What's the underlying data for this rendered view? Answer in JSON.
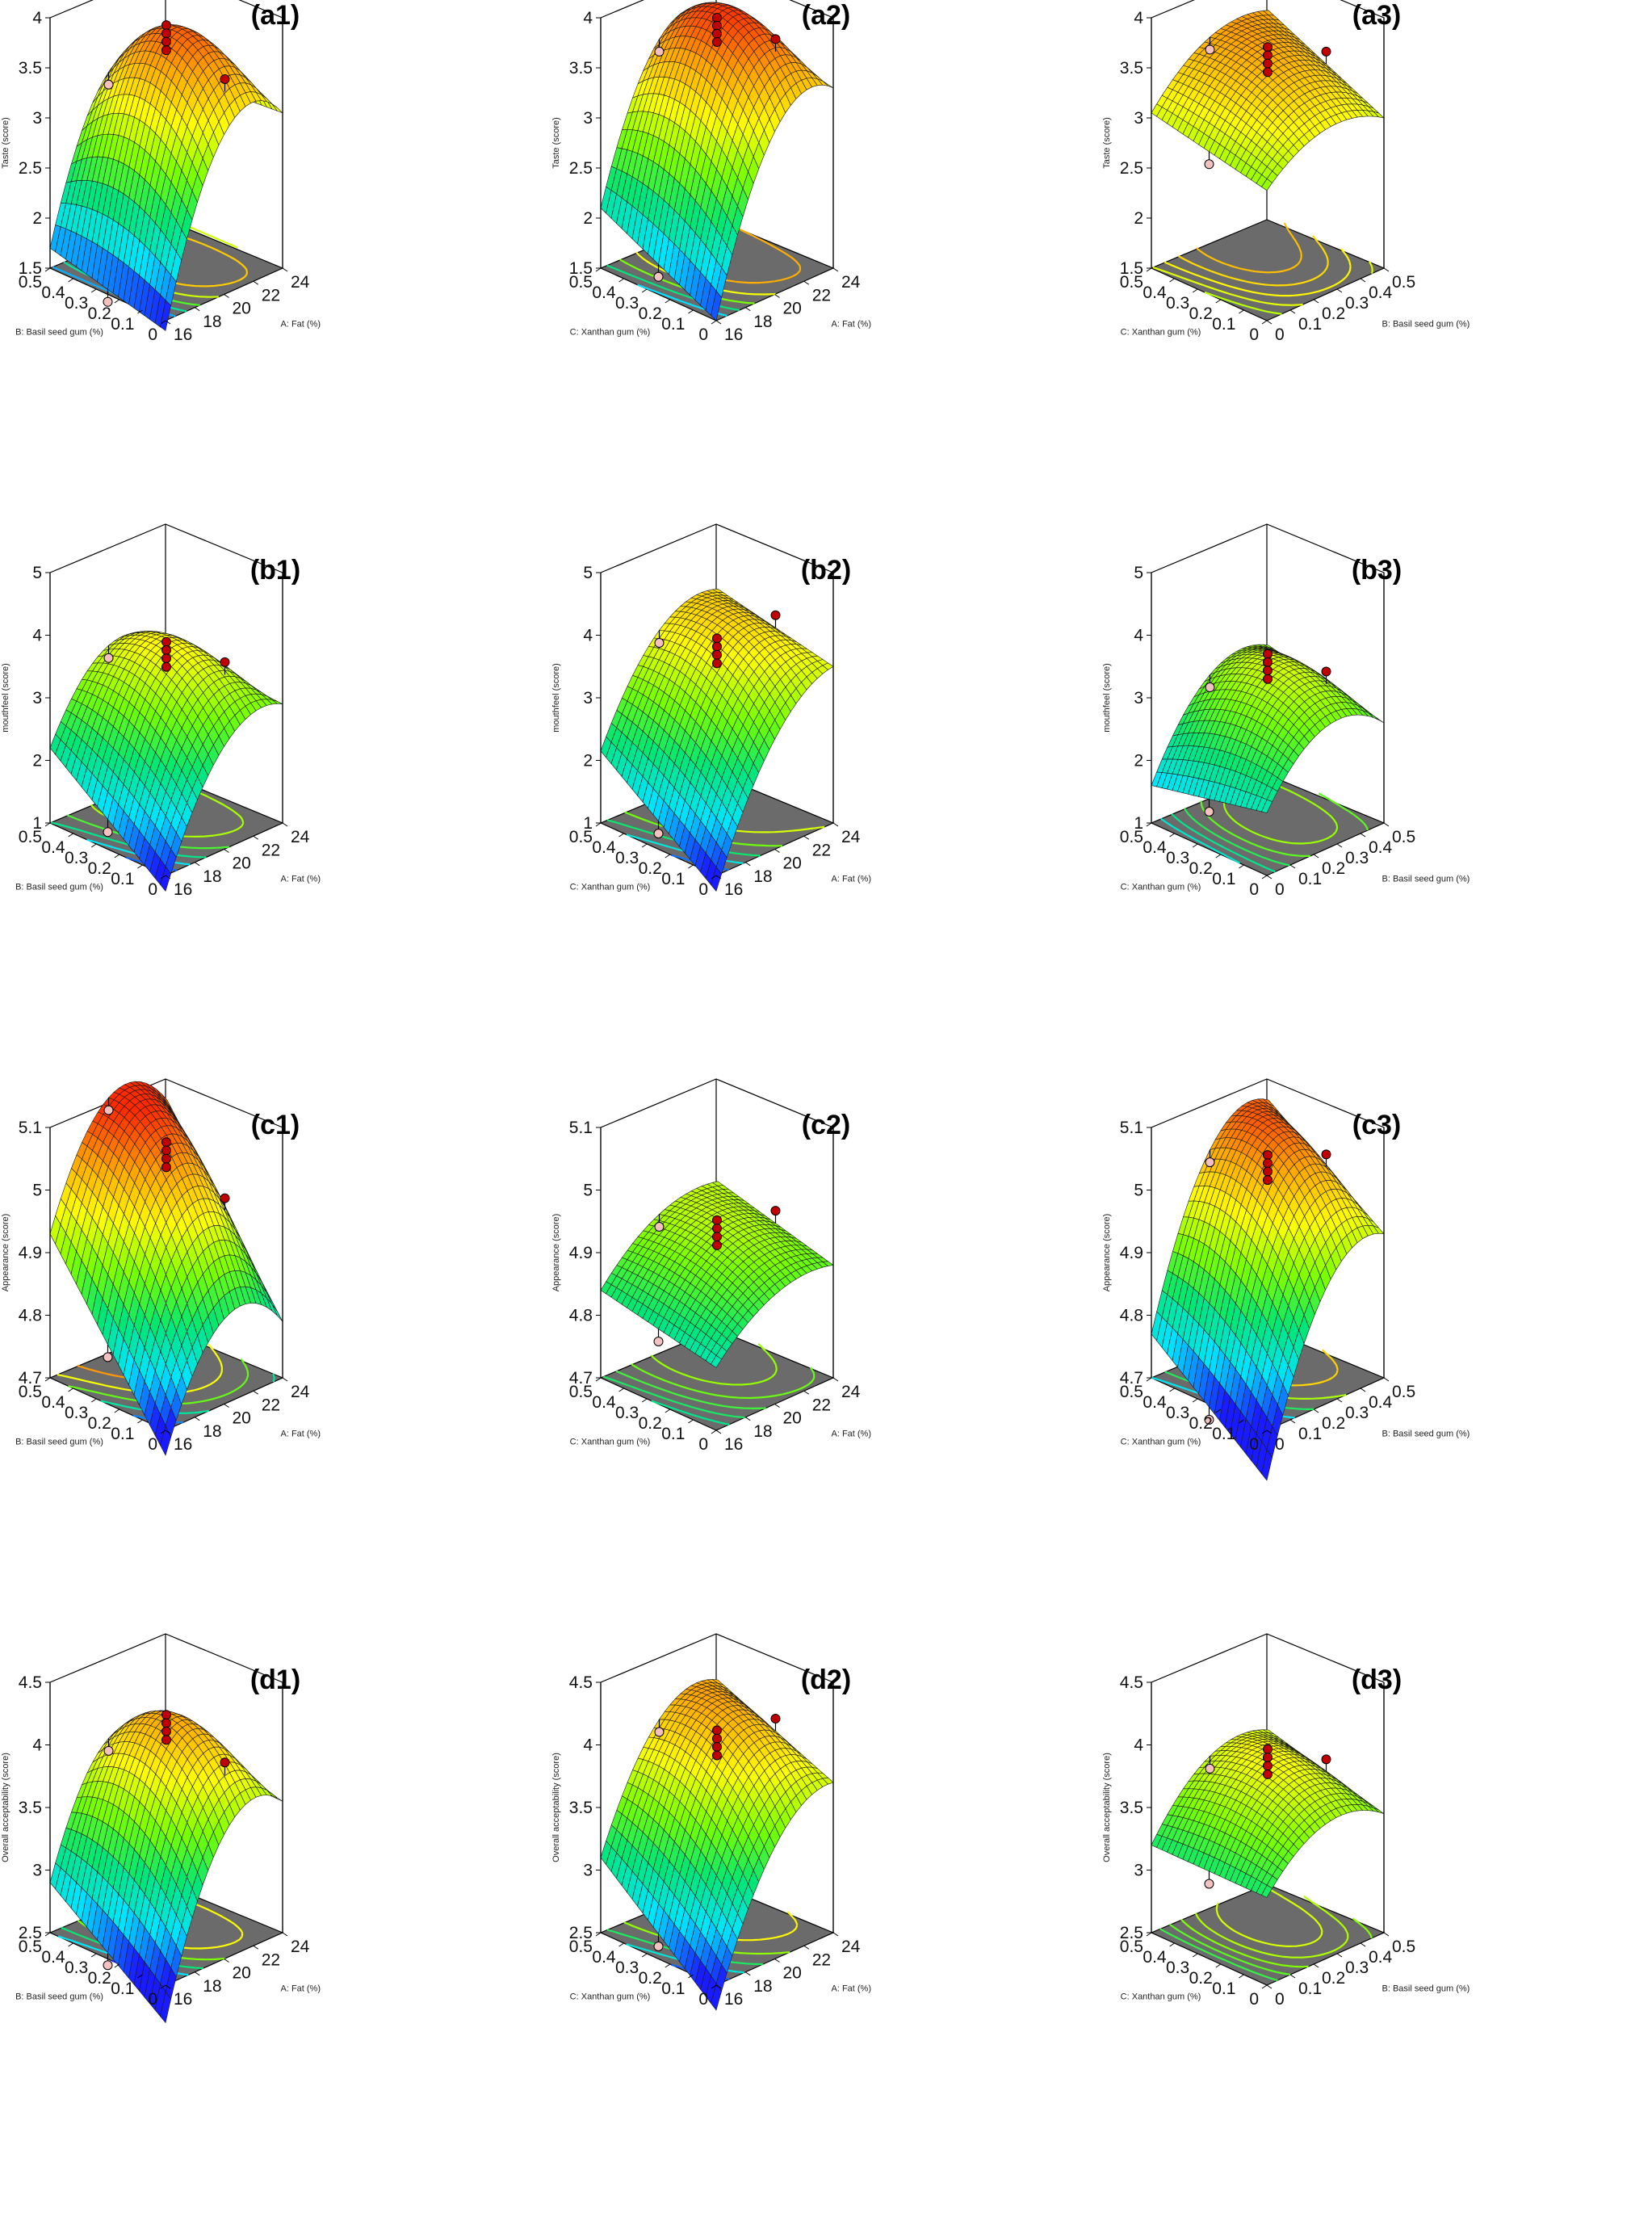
{
  "colors": {
    "floor": "#6b6b6b",
    "ramp": [
      "#1a1aff",
      "#00e5ff",
      "#00e676",
      "#7cff00",
      "#ffff00",
      "#ffa500",
      "#ff2a00"
    ],
    "design_point_above": "#c00000",
    "design_point_below": "#f4c0c0"
  },
  "chart_data": [
    {
      "id": "a1",
      "type": "surface3d",
      "label": "(a1)",
      "title": "",
      "zlabel": "Taste (score)",
      "xlabel": "A: Fat (%)",
      "ylabel": "B: Basil seed gum (%)",
      "xlim": [
        16,
        24
      ],
      "ylim": [
        0,
        0.5
      ],
      "zlim": [
        1.5,
        4
      ],
      "xticks": [
        16,
        18,
        20,
        22,
        24
      ],
      "yticks": [
        0,
        0.1,
        0.2,
        0.3,
        0.4,
        0.5
      ],
      "zticks": [
        1.5,
        2,
        2.5,
        3,
        3.5,
        4
      ],
      "corner_values": {
        "x16_y0": 1.4,
        "x24_y0": 3.05,
        "x16_y0.5": 1.7,
        "x24_y0.5": 2.95
      },
      "peak": 3.9
    },
    {
      "id": "a2",
      "type": "surface3d",
      "label": "(a2)",
      "title": "",
      "zlabel": "Taste (score)",
      "xlabel": "A: Fat (%)",
      "ylabel": "C: Xanthan gum (%)",
      "xlim": [
        16,
        24
      ],
      "ylim": [
        0,
        0.5
      ],
      "zlim": [
        1.5,
        4
      ],
      "xticks": [
        16,
        18,
        20,
        22,
        24
      ],
      "yticks": [
        0,
        0.1,
        0.2,
        0.3,
        0.4,
        0.5
      ],
      "zticks": [
        1.5,
        2,
        2.5,
        3,
        3.5,
        4
      ],
      "corner_values": {
        "x16_y0": 1.5,
        "x24_y0": 3.3,
        "x16_y0.5": 2.1,
        "x24_y0.5": 3.5
      },
      "peak": 4.0
    },
    {
      "id": "a3",
      "type": "surface3d",
      "label": "(a3)",
      "title": "",
      "zlabel": "Taste (score)",
      "xlabel": "B: Basil seed gum (%)",
      "ylabel": "C: Xanthan gum (%)",
      "xlim": [
        0,
        0.5
      ],
      "ylim": [
        0,
        0.5
      ],
      "zlim": [
        1.5,
        4
      ],
      "xticks": [
        0,
        0.1,
        0.2,
        0.3,
        0.4,
        0.5
      ],
      "yticks": [
        0,
        0.1,
        0.2,
        0.3,
        0.4,
        0.5
      ],
      "zticks": [
        1.5,
        2,
        2.5,
        3,
        3.5,
        4
      ],
      "corner_values": {
        "x0_y0": 2.8,
        "x0.5_y0": 3.0,
        "x0_y0.5": 3.05,
        "x0.5_y0.5": 3.55
      },
      "peak": 3.55
    },
    {
      "id": "b1",
      "type": "surface3d",
      "label": "(b1)",
      "title": "",
      "zlabel": "mouthfeel (score)",
      "xlabel": "A: Fat (%)",
      "ylabel": "B: Basil seed gum (%)",
      "xlim": [
        16,
        24
      ],
      "ylim": [
        0,
        0.5
      ],
      "zlim": [
        1,
        5
      ],
      "xticks": [
        16,
        18,
        20,
        22,
        24
      ],
      "yticks": [
        0,
        0.1,
        0.2,
        0.3,
        0.4,
        0.5
      ],
      "zticks": [
        1,
        2,
        3,
        4,
        5
      ],
      "corner_values": {
        "x16_y0": 0.75,
        "x24_y0": 2.9,
        "x16_y0.5": 2.2,
        "x24_y0.5": 3.0
      },
      "peak": 3.75
    },
    {
      "id": "b2",
      "type": "surface3d",
      "label": "(b2)",
      "title": "",
      "zlabel": "mouthfeel (score)",
      "xlabel": "A: Fat (%)",
      "ylabel": "C: Xanthan gum (%)",
      "xlim": [
        16,
        24
      ],
      "ylim": [
        0,
        0.5
      ],
      "zlim": [
        1,
        5
      ],
      "xticks": [
        16,
        18,
        20,
        22,
        24
      ],
      "yticks": [
        0,
        0.1,
        0.2,
        0.3,
        0.4,
        0.5
      ],
      "zticks": [
        1,
        2,
        3,
        4,
        5
      ],
      "corner_values": {
        "x16_y0": 0.75,
        "x24_y0": 3.5,
        "x16_y0.5": 2.15,
        "x24_y0.5": 3.9
      },
      "peak": 3.9
    },
    {
      "id": "b3",
      "type": "surface3d",
      "label": "(b3)",
      "title": "",
      "zlabel": "mouthfeel (score)",
      "xlabel": "B: Basil seed gum (%)",
      "ylabel": "C: Xanthan gum (%)",
      "xlim": [
        0,
        0.5
      ],
      "ylim": [
        0,
        0.5
      ],
      "zlim": [
        1,
        5
      ],
      "xticks": [
        0,
        0.1,
        0.2,
        0.3,
        0.4,
        0.5
      ],
      "yticks": [
        0,
        0.1,
        0.2,
        0.3,
        0.4,
        0.5
      ],
      "zticks": [
        1,
        2,
        3,
        4,
        5
      ],
      "corner_values": {
        "x0_y0": 2.0,
        "x0.5_y0": 2.6,
        "x0_y0.5": 1.6,
        "x0.5_y0.5": 3.0
      },
      "peak": 3.5
    },
    {
      "id": "c1",
      "type": "surface3d",
      "label": "(c1)",
      "title": "",
      "zlabel": "Appearance (score)",
      "xlabel": "A: Fat (%)",
      "ylabel": "B: Basil seed gum (%)",
      "xlim": [
        16,
        24
      ],
      "ylim": [
        0,
        0.5
      ],
      "zlim": [
        4.7,
        5.1
      ],
      "xticks": [
        16,
        18,
        20,
        22,
        24
      ],
      "yticks": [
        0,
        0.1,
        0.2,
        0.3,
        0.4,
        0.5
      ],
      "zticks": [
        4.7,
        4.8,
        4.9,
        5,
        5.1
      ],
      "corner_values": {
        "x16_y0": 4.66,
        "x24_y0": 4.79,
        "x16_y0.5": 4.93,
        "x24_y0.5": 5.06
      },
      "peak": 5.06
    },
    {
      "id": "c2",
      "type": "surface3d",
      "label": "(c2)",
      "title": "",
      "zlabel": "Appearance (score)",
      "xlabel": "A: Fat (%)",
      "ylabel": "C: Xanthan gum (%)",
      "xlim": [
        16,
        24
      ],
      "ylim": [
        0,
        0.5
      ],
      "zlim": [
        4.7,
        5.1
      ],
      "xticks": [
        16,
        18,
        20,
        22,
        24
      ],
      "yticks": [
        0,
        0.1,
        0.2,
        0.3,
        0.4,
        0.5
      ],
      "zticks": [
        4.7,
        4.8,
        4.9,
        5,
        5.1
      ],
      "corner_values": {
        "x16_y0": 4.8,
        "x24_y0": 4.88,
        "x16_y0.5": 4.84,
        "x24_y0.5": 4.93
      },
      "peak": 4.93
    },
    {
      "id": "c3",
      "type": "surface3d",
      "label": "(c3)",
      "title": "",
      "zlabel": "Appearance (score)",
      "xlabel": "B: Basil seed gum (%)",
      "ylabel": "C: Xanthan gum (%)",
      "xlim": [
        0,
        0.5
      ],
      "ylim": [
        0,
        0.5
      ],
      "zlim": [
        4.7,
        5.1
      ],
      "xticks": [
        0,
        0.1,
        0.2,
        0.3,
        0.4,
        0.5
      ],
      "yticks": [
        0,
        0.1,
        0.2,
        0.3,
        0.4,
        0.5
      ],
      "zticks": [
        4.7,
        4.8,
        4.9,
        5,
        5.1
      ],
      "corner_values": {
        "x0_y0": 4.62,
        "x0.5_y0": 4.93,
        "x0_y0.5": 4.77,
        "x0.5_y0.5": 5.06
      },
      "peak": 5.06
    },
    {
      "id": "d1",
      "type": "surface3d",
      "label": "(d1)",
      "title": "",
      "zlabel": "Overall acceptability (score)",
      "xlabel": "A: Fat (%)",
      "ylabel": "B: Basil seed gum (%)",
      "xlim": [
        16,
        24
      ],
      "ylim": [
        0,
        0.5
      ],
      "zlim": [
        2.5,
        4.5
      ],
      "xticks": [
        16,
        18,
        20,
        22,
        24
      ],
      "yticks": [
        0,
        0.1,
        0.2,
        0.3,
        0.4,
        0.5
      ],
      "zticks": [
        2.5,
        3,
        3.5,
        4,
        4.5
      ],
      "corner_values": {
        "x16_y0": 2.2,
        "x24_y0": 3.55,
        "x16_y0.5": 2.9,
        "x24_y0.5": 3.55
      },
      "peak": 4.2
    },
    {
      "id": "d2",
      "type": "surface3d",
      "label": "(d2)",
      "title": "",
      "zlabel": "Overall acceptability (score)",
      "xlabel": "A: Fat (%)",
      "ylabel": "C: Xanthan gum (%)",
      "xlim": [
        16,
        24
      ],
      "ylim": [
        0,
        0.5
      ],
      "zlim": [
        2.5,
        4.5
      ],
      "xticks": [
        16,
        18,
        20,
        22,
        24
      ],
      "yticks": [
        0,
        0.1,
        0.2,
        0.3,
        0.4,
        0.5
      ],
      "zticks": [
        2.5,
        3,
        3.5,
        4,
        4.5
      ],
      "corner_values": {
        "x16_y0": 2.3,
        "x24_y0": 3.7,
        "x16_y0.5": 3.1,
        "x24_y0.5": 4.1
      },
      "peak": 4.1
    },
    {
      "id": "d3",
      "type": "surface3d",
      "label": "(d3)",
      "title": "",
      "zlabel": "Overall acceptability (score)",
      "xlabel": "B: Basil seed gum (%)",
      "ylabel": "C: Xanthan gum (%)",
      "xlim": [
        0,
        0.5
      ],
      "ylim": [
        0,
        0.5
      ],
      "zlim": [
        2.5,
        4.5
      ],
      "xticks": [
        0,
        0.1,
        0.2,
        0.3,
        0.4,
        0.5
      ],
      "yticks": [
        0,
        0.1,
        0.2,
        0.3,
        0.4,
        0.5
      ],
      "zticks": [
        2.5,
        3,
        3.5,
        4,
        4.5
      ],
      "corner_values": {
        "x0_y0": 3.2,
        "x0.5_y0": 3.45,
        "x0_y0.5": 3.2,
        "x0.5_y0.5": 3.7
      },
      "peak": 3.85
    }
  ]
}
